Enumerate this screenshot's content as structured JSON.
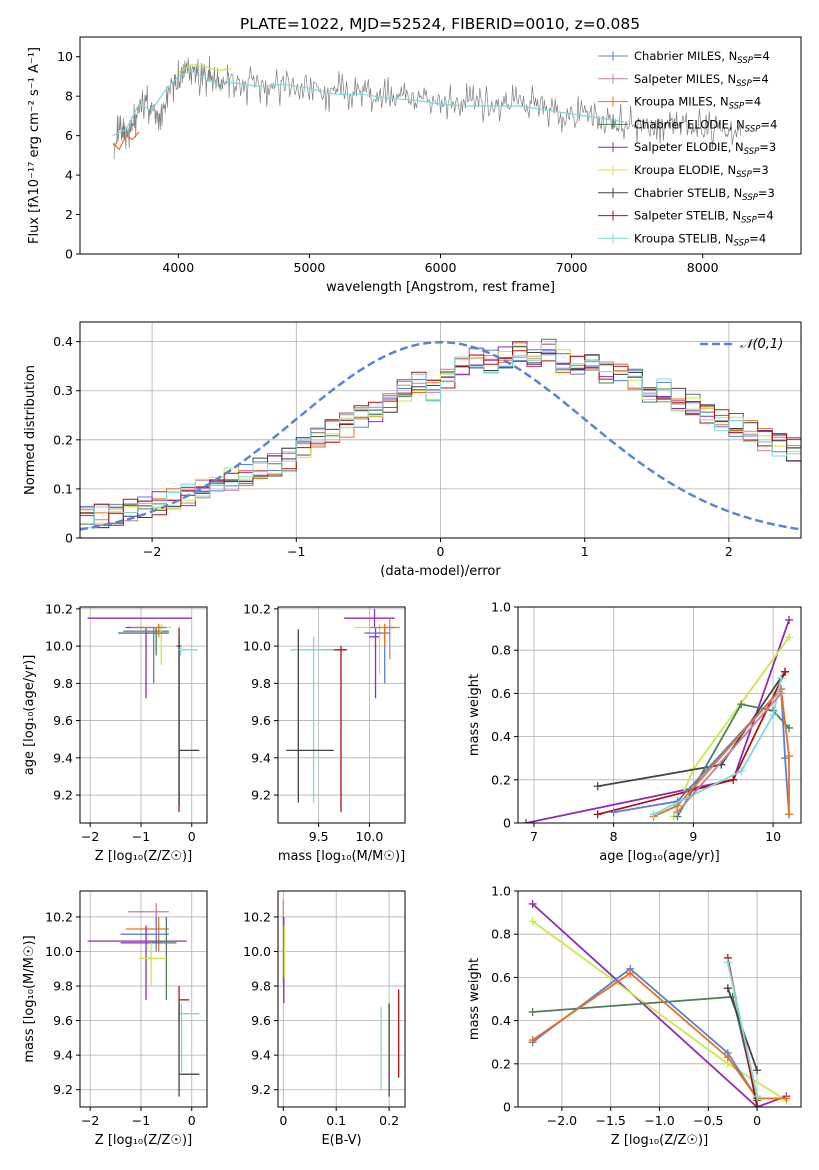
{
  "figure": {
    "title": "PLATE=1022, MJD=52524, FIBERID=0010, z=0.085"
  },
  "models": [
    {
      "name": "Chabrier MILES",
      "nssp": "4",
      "color": "#5b7fd9"
    },
    {
      "name": "Salpeter MILES",
      "nssp": "4",
      "color": "#c47fa8"
    },
    {
      "name": "Kroupa MILES",
      "nssp": "4",
      "color": "#e8731f"
    },
    {
      "name": "Chabrier ELODIE",
      "nssp": "4",
      "color": "#4f7f5a"
    },
    {
      "name": "Salpeter ELODIE",
      "nssp": "3",
      "color": "#8e2db3"
    },
    {
      "name": "Kroupa ELODIE",
      "nssp": "3",
      "color": "#c9e84a"
    },
    {
      "name": "Chabrier STELIB",
      "nssp": "3",
      "color": "#444444"
    },
    {
      "name": "Salpeter STELIB",
      "nssp": "4",
      "color": "#b01212"
    },
    {
      "name": "Kroupa STELIB",
      "nssp": "4",
      "color": "#7fd8d8"
    }
  ],
  "chart_data": [
    {
      "id": "spectrum",
      "type": "line",
      "xlabel": "wavelength [Angstrom, rest frame]",
      "ylabel": "Flux [fλ10⁻¹⁷ erg cm⁻² s⁻¹ A⁻¹]",
      "xlim": [
        3250,
        8750
      ],
      "ylim": [
        0,
        11
      ],
      "xticks": [
        4000,
        5000,
        6000,
        7000,
        8000
      ],
      "yticks": [
        0,
        2,
        4,
        6,
        8,
        10
      ],
      "legend": "top-right",
      "data_series": {
        "name": "",
        "color": "#808080",
        "x": [
          3510,
          3560,
          3600,
          3650,
          3700,
          3750,
          3800,
          3850,
          3900,
          3950,
          4000,
          4050,
          4100,
          4150,
          4200,
          4250,
          4300,
          4350,
          4400,
          4500,
          4600,
          4700,
          4800,
          4900,
          5000,
          5100,
          5200,
          5300,
          5400,
          5500,
          5600,
          5700,
          5800,
          5900,
          6000,
          6100,
          6200,
          6300,
          6400,
          6500,
          6600,
          6700,
          6800,
          6900,
          7000,
          7100,
          7200,
          7300,
          7400,
          7500,
          7600,
          7700,
          7800,
          7900,
          8000,
          8100,
          8200,
          8300
        ],
        "y": [
          5.9,
          6.1,
          6.3,
          6.5,
          7.4,
          7.8,
          7.2,
          7.0,
          7.5,
          8.6,
          8.8,
          9.1,
          9.3,
          8.8,
          8.9,
          9.0,
          8.5,
          8.8,
          8.7,
          8.6,
          8.5,
          8.3,
          8.7,
          8.5,
          8.6,
          8.2,
          8.1,
          8.4,
          8.2,
          8.0,
          7.9,
          8.0,
          7.8,
          7.9,
          7.8,
          7.5,
          7.6,
          7.5,
          7.4,
          7.6,
          7.8,
          7.6,
          7.4,
          7.2,
          7.0,
          6.9,
          6.8,
          6.7,
          6.6,
          6.5,
          6.4,
          6.6,
          6.5,
          6.4,
          6.3,
          6.2,
          6.4,
          6.3
        ]
      },
      "model_series": [
        {
          "name": "Kroupa STELIB",
          "x": [
            3500,
            3600,
            3700,
            3800,
            3900,
            4000,
            4100,
            4200,
            4300,
            4400,
            4600,
            4800,
            5000,
            5200,
            5400,
            5600,
            5800,
            6000,
            6200,
            6400,
            6600,
            6800,
            7000,
            7200,
            7400
          ],
          "y": [
            6.0,
            6.3,
            7.6,
            7.3,
            8.3,
            9.0,
            9.3,
            8.9,
            8.6,
            8.7,
            8.5,
            8.6,
            8.4,
            8.1,
            8.1,
            7.9,
            7.8,
            7.6,
            7.5,
            7.5,
            7.5,
            7.3,
            7.1,
            6.9,
            6.7
          ]
        },
        {
          "name": "Kroupa MILES",
          "x": [
            3500,
            3550,
            3600,
            3650,
            3700
          ],
          "y": [
            5.6,
            5.3,
            6.0,
            5.8,
            6.2
          ]
        },
        {
          "name": "Kroupa ELODIE",
          "x": [
            4000,
            4100,
            4200,
            4300,
            4400
          ],
          "y": [
            9.2,
            9.6,
            9.5,
            9.3,
            9.4
          ]
        }
      ]
    },
    {
      "id": "residuals",
      "type": "histogram",
      "xlabel": "(data-model)/error",
      "ylabel": "Normed distribution",
      "xlim": [
        -2.5,
        2.5
      ],
      "ylim": [
        0,
        0.44
      ],
      "xticks": [
        -2,
        -1,
        0,
        1,
        2
      ],
      "yticks": [
        0.0,
        0.1,
        0.2,
        0.3,
        0.4
      ],
      "legend": "top-right",
      "reference": {
        "label": "𝒩(0,1)",
        "mean": 0,
        "sigma": 1,
        "color": "#5b84d4"
      },
      "bins": {
        "start": -2.5,
        "width": 0.1,
        "envelope": [
          0.04,
          0.045,
          0.05,
          0.055,
          0.06,
          0.07,
          0.08,
          0.09,
          0.1,
          0.11,
          0.12,
          0.13,
          0.14,
          0.15,
          0.16,
          0.18,
          0.2,
          0.22,
          0.23,
          0.25,
          0.26,
          0.28,
          0.3,
          0.32,
          0.3,
          0.33,
          0.35,
          0.37,
          0.36,
          0.37,
          0.38,
          0.37,
          0.38,
          0.36,
          0.35,
          0.36,
          0.34,
          0.33,
          0.32,
          0.3,
          0.3,
          0.28,
          0.27,
          0.25,
          0.24,
          0.23,
          0.22,
          0.2,
          0.19,
          0.18
        ]
      }
    },
    {
      "id": "age-vs-Z",
      "type": "errorbar",
      "xlabel": "Z [log₁₀(Z/Z☉)]",
      "ylabel": "age  [log₁₀(age/yr)]",
      "xlim": [
        -2.2,
        0.3
      ],
      "ylim": [
        9.05,
        10.21
      ],
      "xticks": [
        -2,
        -1,
        0
      ],
      "yticks": [
        9.2,
        9.4,
        9.6,
        9.8,
        10.0,
        10.2
      ],
      "points": [
        {
          "x": -0.55,
          "y": 10.15,
          "xlo": -2.05,
          "xhi": 0.0,
          "ylo": 10.15,
          "yhi": 10.15,
          "color": "#8e2db3"
        },
        {
          "x": -0.9,
          "y": 10.1,
          "xlo": -1.3,
          "xhi": -0.6,
          "ylo": 9.72,
          "yhi": 10.1,
          "color": "#8e2db3"
        },
        {
          "x": -0.75,
          "y": 10.08,
          "xlo": -1.35,
          "xhi": -0.45,
          "ylo": 9.8,
          "yhi": 10.1,
          "color": "#5b7fd9"
        },
        {
          "x": -0.6,
          "y": 10.1,
          "xlo": -1.1,
          "xhi": -0.4,
          "ylo": 9.9,
          "yhi": 10.12,
          "color": "#c9e84a"
        },
        {
          "x": -0.7,
          "y": 10.07,
          "xlo": -1.45,
          "xhi": -0.45,
          "ylo": 9.95,
          "yhi": 10.1,
          "color": "#4f7f5a"
        },
        {
          "x": -0.65,
          "y": 10.1,
          "xlo": -1.2,
          "xhi": -0.5,
          "ylo": 10.05,
          "yhi": 10.12,
          "color": "#e8731f"
        },
        {
          "x": -0.25,
          "y": 10.0,
          "xlo": -0.3,
          "xhi": -0.2,
          "ylo": 9.11,
          "yhi": 10.1,
          "color": "#b01212"
        },
        {
          "x": -0.25,
          "y": 9.44,
          "xlo": -0.25,
          "xhi": 0.15,
          "ylo": 9.14,
          "yhi": 10.05,
          "color": "#444444"
        },
        {
          "x": -0.22,
          "y": 9.98,
          "xlo": -0.25,
          "xhi": 0.12,
          "ylo": 9.95,
          "yhi": 10.0,
          "color": "#7fd8d8"
        }
      ]
    },
    {
      "id": "age-vs-mass",
      "type": "errorbar",
      "xlabel": "mass [log₁₀(M/M☉)]",
      "ylabel": "",
      "xlim": [
        9.1,
        10.35
      ],
      "ylim": [
        9.05,
        10.21
      ],
      "xticks": [
        9.5,
        10.0
      ],
      "yticks": [
        9.2,
        9.4,
        9.6,
        9.8,
        10.0,
        10.2
      ],
      "points": [
        {
          "x": 10.05,
          "y": 10.15,
          "xlo": 9.75,
          "xhi": 10.25,
          "ylo": 10.1,
          "yhi": 10.2,
          "color": "#8e2db3"
        },
        {
          "x": 10.06,
          "y": 10.05,
          "xlo": 10.0,
          "xhi": 10.1,
          "ylo": 9.72,
          "yhi": 10.1,
          "color": "#8e2db3"
        },
        {
          "x": 10.2,
          "y": 10.1,
          "xlo": 10.15,
          "xhi": 10.3,
          "ylo": 9.93,
          "yhi": 10.15,
          "color": "#c47fa8"
        },
        {
          "x": 10.1,
          "y": 10.1,
          "xlo": 9.85,
          "xhi": 10.25,
          "ylo": 9.85,
          "yhi": 10.12,
          "color": "#c9e84a"
        },
        {
          "x": 10.15,
          "y": 10.07,
          "xlo": 9.95,
          "xhi": 10.2,
          "ylo": 9.8,
          "yhi": 10.1,
          "color": "#5b7fd9"
        },
        {
          "x": 10.15,
          "y": 10.1,
          "xlo": 10.0,
          "xhi": 10.25,
          "ylo": 10.0,
          "yhi": 10.12,
          "color": "#e8731f"
        },
        {
          "x": 9.72,
          "y": 9.98,
          "xlo": 9.55,
          "xhi": 9.78,
          "ylo": 9.11,
          "yhi": 10.0,
          "color": "#b01212"
        },
        {
          "x": 9.45,
          "y": 9.98,
          "xlo": 9.22,
          "xhi": 9.65,
          "ylo": 9.16,
          "yhi": 10.05,
          "color": "#7fd8d8"
        },
        {
          "x": 9.3,
          "y": 9.44,
          "xlo": 9.18,
          "xhi": 9.65,
          "ylo": 9.16,
          "yhi": 10.09,
          "color": "#444444"
        }
      ]
    },
    {
      "id": "weight-vs-age",
      "type": "line",
      "xlabel": "age  [log₁₀(age/yr)]",
      "ylabel": "mass weight",
      "xlim": [
        6.8,
        10.35
      ],
      "ylim": [
        0,
        1.0
      ],
      "xticks": [
        7,
        8,
        9,
        10
      ],
      "yticks": [
        0.0,
        0.2,
        0.4,
        0.6,
        0.8,
        1.0
      ],
      "series": [
        {
          "color": "#8e2db3",
          "x": [
            6.9,
            9.5,
            10.2
          ],
          "y": [
            0.0,
            0.2,
            0.94
          ]
        },
        {
          "color": "#c9e84a",
          "x": [
            8.75,
            9.0,
            10.2
          ],
          "y": [
            0.03,
            0.25,
            0.86
          ]
        },
        {
          "color": "#444444",
          "x": [
            7.8,
            9.35,
            10.15
          ],
          "y": [
            0.17,
            0.27,
            0.7
          ]
        },
        {
          "color": "#4f7f5a",
          "x": [
            8.8,
            9.6,
            10.0,
            10.2
          ],
          "y": [
            0.03,
            0.55,
            0.52,
            0.44
          ]
        },
        {
          "color": "#b01212",
          "x": [
            7.8,
            9.5,
            10.15
          ],
          "y": [
            0.04,
            0.2,
            0.7
          ]
        },
        {
          "color": "#5b7fd9",
          "x": [
            8.0,
            8.8,
            10.1,
            10.15,
            10.2
          ],
          "y": [
            0.05,
            0.1,
            0.62,
            0.3,
            0.04
          ]
        },
        {
          "color": "#e8731f",
          "x": [
            8.5,
            8.8,
            10.1,
            10.2,
            10.2
          ],
          "y": [
            0.03,
            0.08,
            0.62,
            0.31,
            0.04
          ]
        },
        {
          "color": "#7fd8d8",
          "x": [
            8.5,
            9.6,
            10.0,
            10.1
          ],
          "y": [
            0.04,
            0.24,
            0.5,
            0.67
          ]
        },
        {
          "color": "#c47fa8",
          "x": [
            8.8,
            10.1
          ],
          "y": [
            0.05,
            0.6
          ]
        }
      ]
    },
    {
      "id": "mass-vs-Z",
      "type": "errorbar",
      "xlabel": "Z [log₁₀(Z/Z☉)]",
      "ylabel": "mass [log₁₀(M/M☉)]",
      "xlim": [
        -2.2,
        0.3
      ],
      "ylim": [
        9.1,
        10.35
      ],
      "xticks": [
        -2,
        -1,
        0
      ],
      "yticks": [
        9.2,
        9.4,
        9.6,
        9.8,
        10.0,
        10.2
      ],
      "points": [
        {
          "x": -0.7,
          "y": 10.23,
          "xlo": -1.25,
          "xhi": -0.45,
          "ylo": 10.15,
          "yhi": 10.28,
          "color": "#c47fa8"
        },
        {
          "x": -0.65,
          "y": 10.13,
          "xlo": -1.3,
          "xhi": -0.45,
          "ylo": 10.0,
          "yhi": 10.2,
          "color": "#e8731f"
        },
        {
          "x": -0.7,
          "y": 10.1,
          "xlo": -1.4,
          "xhi": -0.45,
          "ylo": 10.0,
          "yhi": 10.2,
          "color": "#5b7fd9"
        },
        {
          "x": -0.6,
          "y": 10.06,
          "xlo": -2.05,
          "xhi": -0.1,
          "ylo": 10.06,
          "yhi": 10.06,
          "color": "#8e2db3"
        },
        {
          "x": -0.9,
          "y": 10.05,
          "xlo": -1.4,
          "xhi": -0.6,
          "ylo": 9.72,
          "yhi": 10.15,
          "color": "#8e2db3"
        },
        {
          "x": -0.5,
          "y": 10.05,
          "xlo": -0.8,
          "xhi": -0.3,
          "ylo": 9.72,
          "yhi": 10.2,
          "color": "#4f7f5a"
        },
        {
          "x": -0.8,
          "y": 9.96,
          "xlo": -1.05,
          "xhi": -0.5,
          "ylo": 9.8,
          "yhi": 10.05,
          "color": "#c9e84a"
        },
        {
          "x": -0.25,
          "y": 9.72,
          "xlo": -0.25,
          "xhi": -0.05,
          "ylo": 9.6,
          "yhi": 9.8,
          "color": "#b01212"
        },
        {
          "x": -0.2,
          "y": 9.64,
          "xlo": -0.25,
          "xhi": 0.15,
          "ylo": 9.3,
          "yhi": 9.7,
          "color": "#7fd8d8"
        },
        {
          "x": -0.25,
          "y": 9.29,
          "xlo": -0.25,
          "xhi": 0.15,
          "ylo": 9.16,
          "yhi": 9.7,
          "color": "#444444"
        }
      ]
    },
    {
      "id": "mass-vs-EBV",
      "type": "errorbar",
      "xlabel": "E(B-V)",
      "ylabel": "",
      "xlim": [
        -0.01,
        0.23
      ],
      "ylim": [
        9.1,
        10.35
      ],
      "xticks": [
        0.0,
        0.1,
        0.2
      ],
      "yticks": [
        9.2,
        9.4,
        9.6,
        9.8,
        10.0,
        10.2
      ],
      "points": [
        {
          "x": 0.0,
          "y": 10.1,
          "ylo": 9.82,
          "yhi": 10.3,
          "color": "#c47fa8"
        },
        {
          "x": 0.001,
          "y": 10.05,
          "ylo": 9.7,
          "yhi": 10.2,
          "color": "#8e2db3"
        },
        {
          "x": 0.002,
          "y": 10.0,
          "ylo": 9.85,
          "yhi": 10.15,
          "color": "#c9e84a"
        },
        {
          "x": 0.185,
          "y": 9.45,
          "ylo": 9.2,
          "yhi": 9.68,
          "color": "#7fd8d8"
        },
        {
          "x": 0.2,
          "y": 9.45,
          "ylo": 9.16,
          "yhi": 9.7,
          "color": "#444444"
        },
        {
          "x": 0.218,
          "y": 9.5,
          "ylo": 9.27,
          "yhi": 9.78,
          "color": "#b01212"
        }
      ]
    },
    {
      "id": "weight-vs-Z",
      "type": "line",
      "xlabel": "Z [log₁₀(Z/Z☉)]",
      "ylabel": "mass weight",
      "xlim": [
        -2.45,
        0.45
      ],
      "ylim": [
        0,
        1.0
      ],
      "xticks": [
        -2.0,
        -1.5,
        -1.0,
        -0.5,
        0.0
      ],
      "yticks": [
        0.0,
        0.2,
        0.4,
        0.6,
        0.8,
        1.0
      ],
      "series": [
        {
          "color": "#8e2db3",
          "x": [
            -2.3,
            0.0,
            0.3
          ],
          "y": [
            0.94,
            0.0,
            0.05
          ]
        },
        {
          "color": "#c9e84a",
          "x": [
            -2.3,
            -0.3,
            0.3
          ],
          "y": [
            0.86,
            0.2,
            0.03
          ]
        },
        {
          "color": "#4f7f5a",
          "x": [
            -2.3,
            -0.25,
            0.0
          ],
          "y": [
            0.44,
            0.51,
            0.03
          ]
        },
        {
          "color": "#5b7fd9",
          "x": [
            -2.3,
            -1.3,
            -0.3,
            0.0
          ],
          "y": [
            0.3,
            0.64,
            0.25,
            0.04
          ]
        },
        {
          "color": "#e8731f",
          "x": [
            -2.3,
            -1.3,
            -0.3,
            0.0,
            0.3
          ],
          "y": [
            0.31,
            0.62,
            0.23,
            0.04,
            0.04
          ]
        },
        {
          "color": "#b01212",
          "x": [
            -0.3,
            0.0
          ],
          "y": [
            0.69,
            0.0
          ]
        },
        {
          "color": "#444444",
          "x": [
            -0.3,
            0.0
          ],
          "y": [
            0.55,
            0.17
          ]
        },
        {
          "color": "#7fd8d8",
          "x": [
            -0.3,
            0.0
          ],
          "y": [
            0.67,
            0.05
          ]
        }
      ]
    }
  ]
}
